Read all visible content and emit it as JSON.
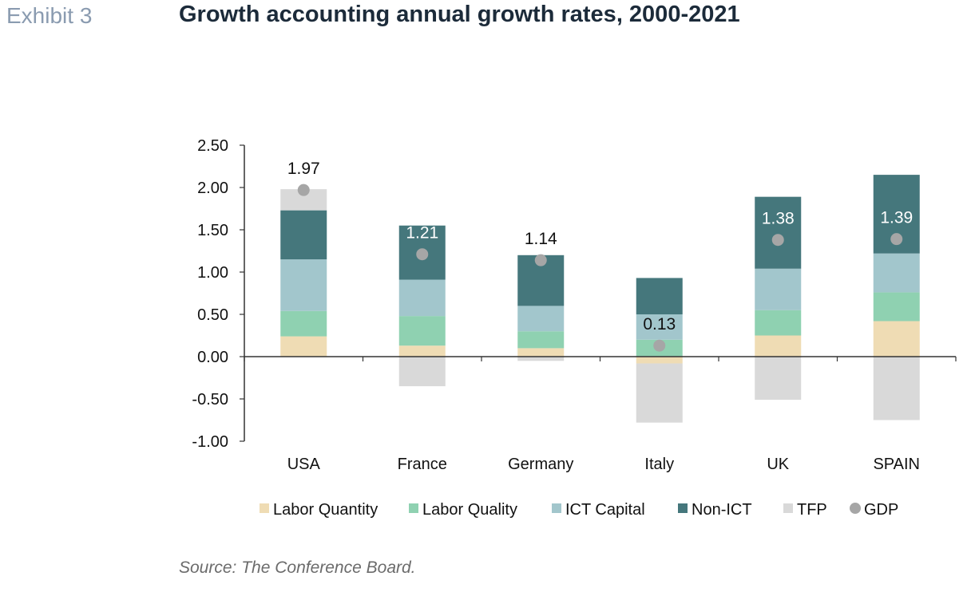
{
  "header": {
    "exhibit_label": "Exhibit 3",
    "title": "Growth accounting annual growth rates, 2000-2021"
  },
  "footer": {
    "source": "Source: The Conference Board."
  },
  "chart_data": {
    "type": "bar",
    "stacked": true,
    "categories": [
      "USA",
      "France",
      "Germany",
      "Italy",
      "UK",
      "SPAIN"
    ],
    "ylim": [
      -1.0,
      2.5
    ],
    "yticks": [
      "2.50",
      "2.00",
      "1.50",
      "1.00",
      "0.50",
      "0.00",
      "-0.50",
      "-1.00"
    ],
    "ytick_values": [
      2.5,
      2.0,
      1.5,
      1.0,
      0.5,
      0.0,
      -0.5,
      -1.0
    ],
    "grid": false,
    "legend_position": "bottom",
    "series": [
      {
        "name": "Labor Quantity",
        "color": "#efdcb4",
        "values": [
          0.24,
          0.13,
          0.1,
          -0.08,
          0.25,
          0.42
        ]
      },
      {
        "name": "Labor Quality",
        "color": "#8fd1b1",
        "values": [
          0.3,
          0.35,
          0.2,
          0.2,
          0.3,
          0.34
        ]
      },
      {
        "name": "ICT Capital",
        "color": "#a2c6cc",
        "values": [
          0.61,
          0.43,
          0.3,
          0.3,
          0.49,
          0.46
        ]
      },
      {
        "name": "Non-ICT",
        "color": "#45777c",
        "values": [
          0.58,
          0.64,
          0.6,
          0.43,
          0.85,
          0.93
        ]
      },
      {
        "name": "TFP",
        "color": "#d9d9d9",
        "values": [
          0.25,
          -0.35,
          -0.05,
          -0.7,
          -0.51,
          -0.75
        ]
      }
    ],
    "gdp": {
      "name": "GDP",
      "color": "#a6a6a6",
      "values": [
        1.97,
        1.21,
        1.14,
        0.13,
        1.38,
        1.39
      ],
      "labels": [
        "1.97",
        "1.21",
        "1.14",
        "0.13",
        "1.38",
        "1.39"
      ],
      "label_colors": [
        "#111111",
        "#ffffff",
        "#111111",
        "#111111",
        "#ffffff",
        "#ffffff"
      ]
    }
  }
}
